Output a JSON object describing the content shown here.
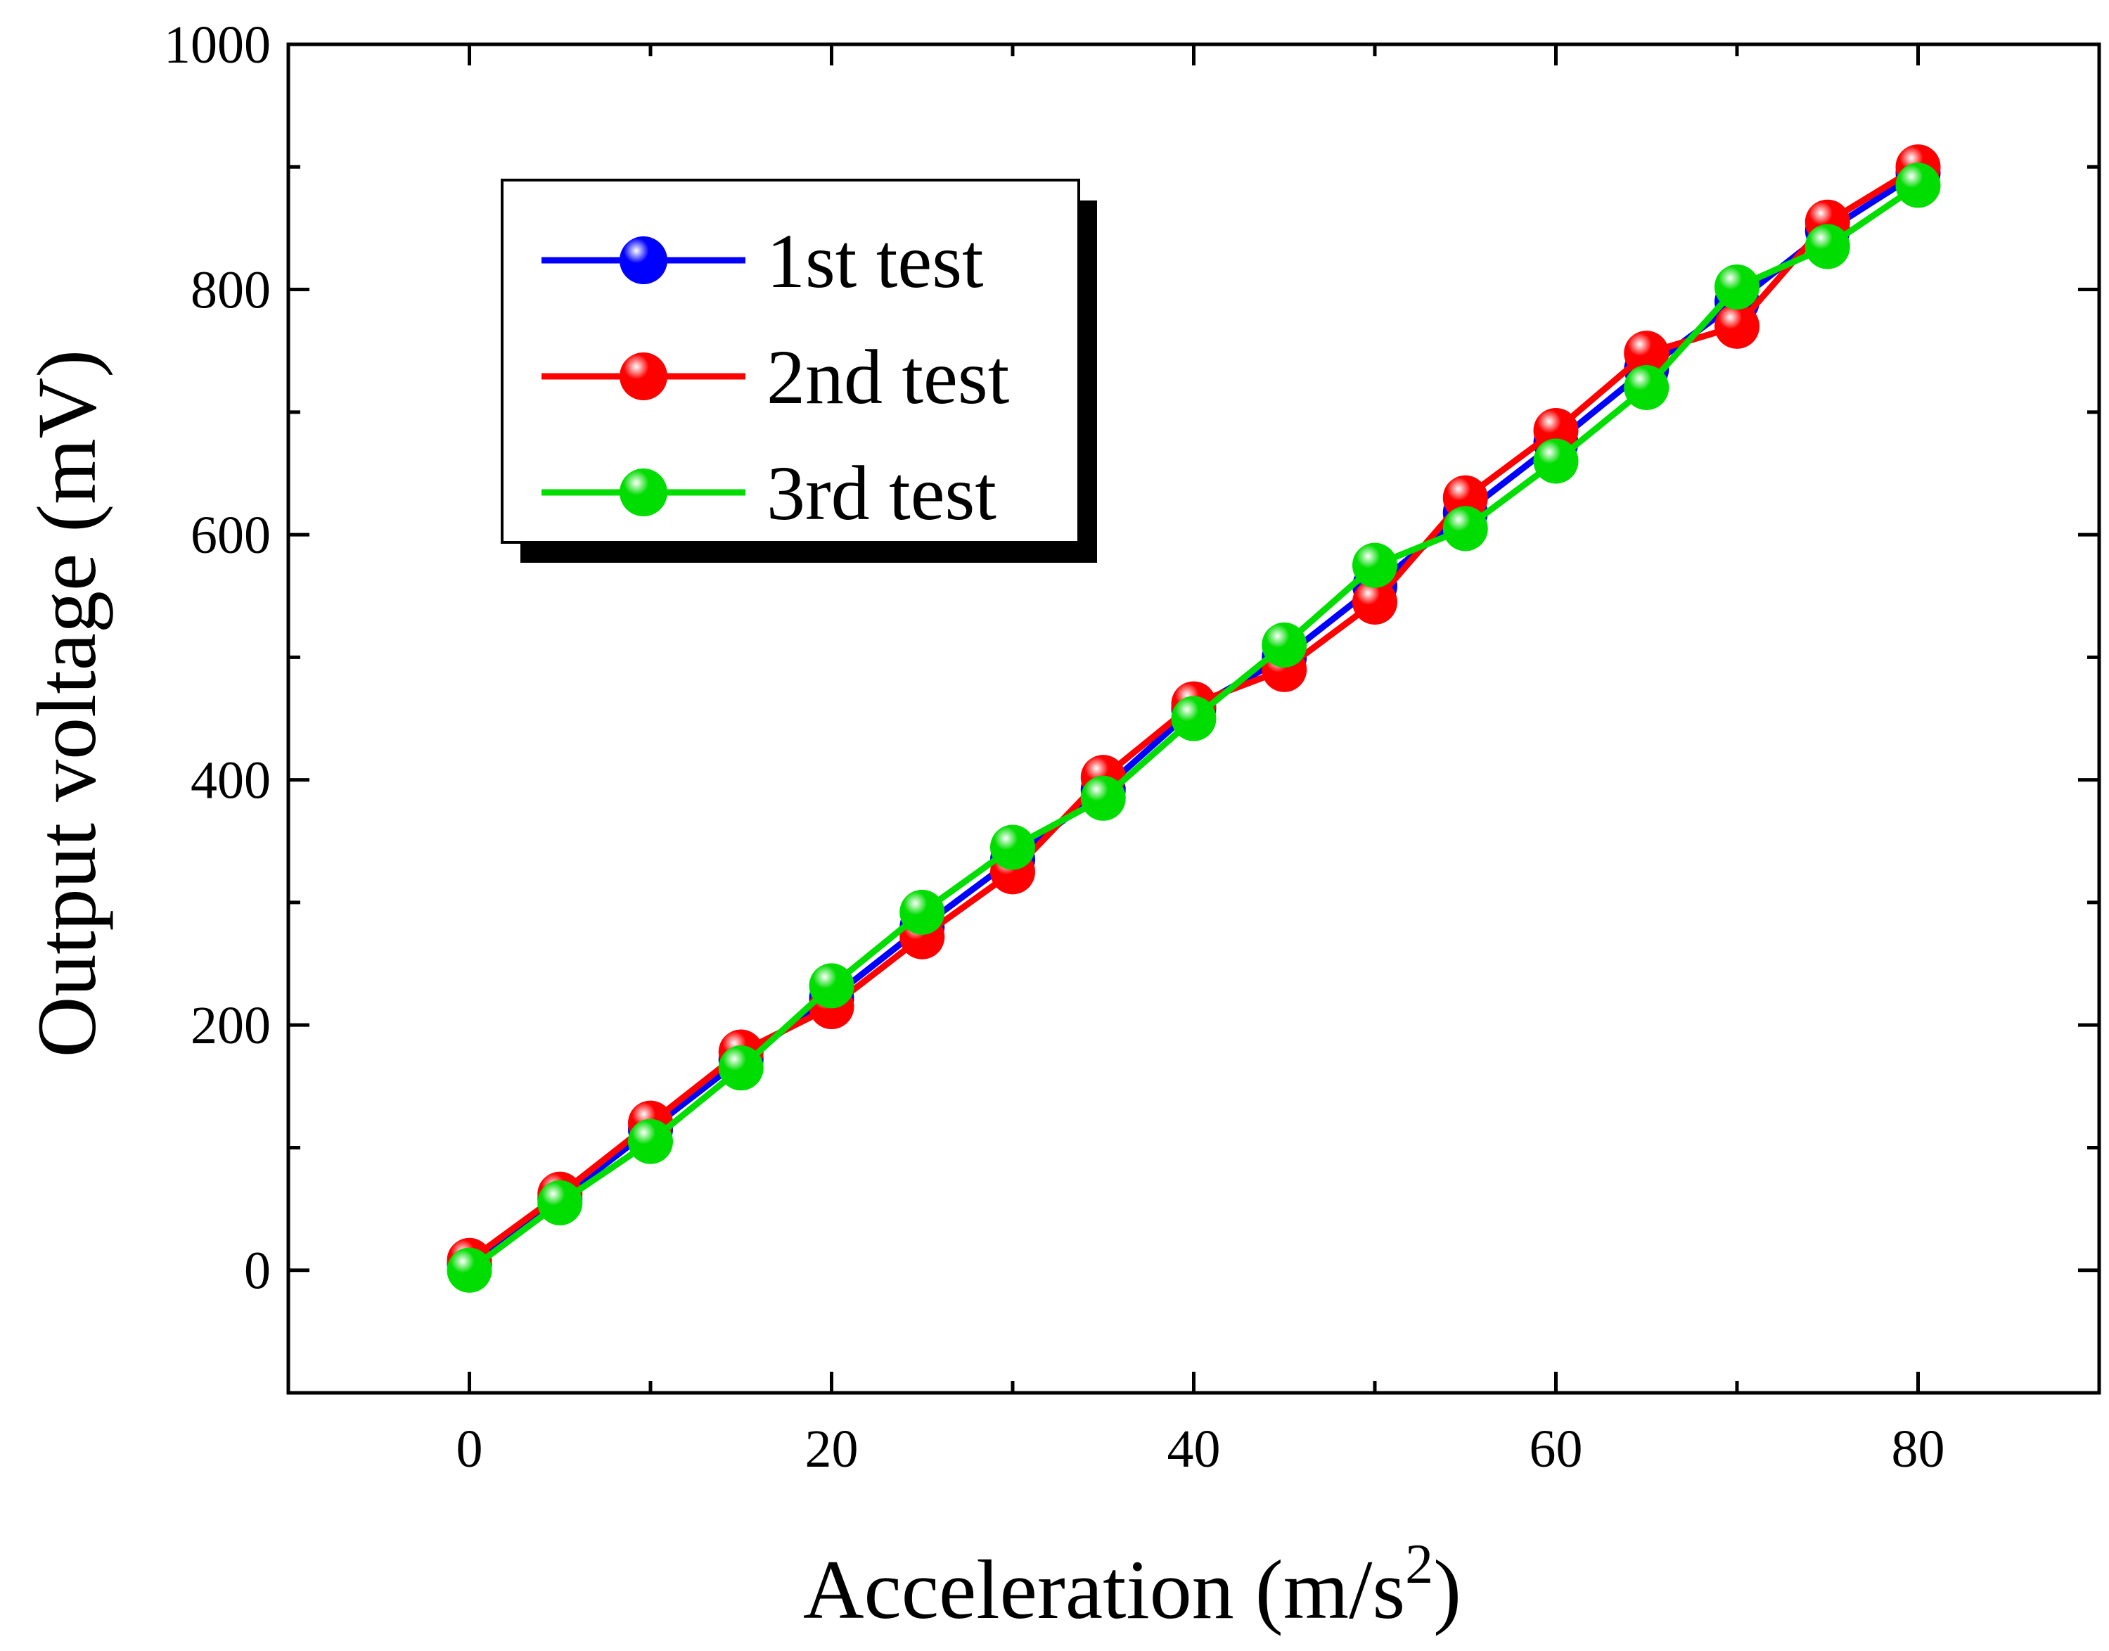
{
  "chart_data": {
    "type": "line",
    "xlabel": "Acceleration (m/s",
    "xlabel_superscript": "2",
    "xlabel_close": ")",
    "ylabel": "Output voltage (mV)",
    "xlim": [
      -10,
      90
    ],
    "ylim": [
      -100,
      1000
    ],
    "xticks": [
      0,
      20,
      40,
      60,
      80
    ],
    "yticks": [
      0,
      200,
      400,
      600,
      800,
      1000
    ],
    "x": [
      0,
      5,
      10,
      15,
      20,
      25,
      30,
      35,
      40,
      45,
      50,
      55,
      60,
      65,
      70,
      75,
      80
    ],
    "legend_position": "top-left",
    "series": [
      {
        "name": "1st test",
        "color": "#0000ff",
        "values": [
          5,
          58,
          115,
          172,
          222,
          280,
          335,
          392,
          458,
          500,
          558,
          618,
          675,
          735,
          790,
          848,
          895
        ]
      },
      {
        "name": "2nd test",
        "color": "#ff0000",
        "values": [
          8,
          62,
          120,
          178,
          215,
          272,
          325,
          402,
          462,
          490,
          545,
          630,
          685,
          748,
          770,
          855,
          900
        ]
      },
      {
        "name": "3rd test",
        "color": "#00dd00",
        "values": [
          0,
          55,
          105,
          165,
          232,
          292,
          345,
          385,
          450,
          510,
          575,
          605,
          660,
          720,
          802,
          835,
          885
        ]
      }
    ]
  }
}
